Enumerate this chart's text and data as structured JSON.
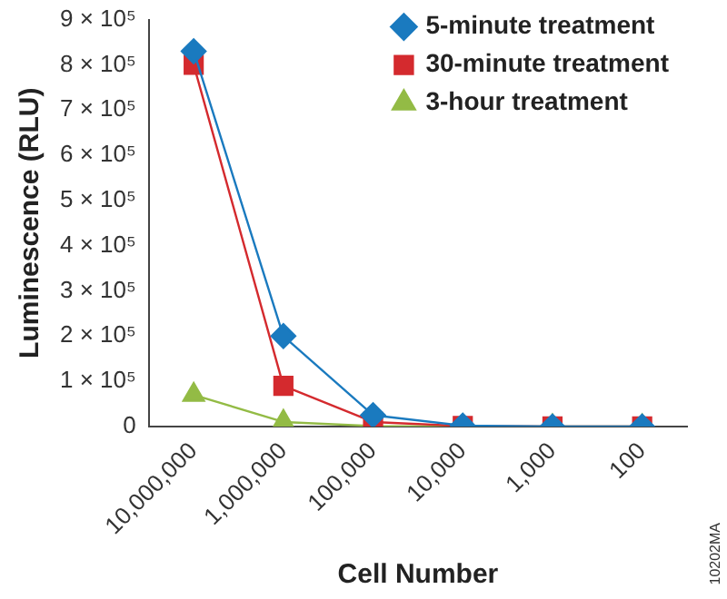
{
  "chart_data": {
    "type": "line",
    "xlabel": "Cell Number",
    "ylabel": "Luminescence (RLU)",
    "categories": [
      "10,000,000",
      "1,000,000",
      "100,000",
      "10,000",
      "1,000",
      "100"
    ],
    "series": [
      {
        "name": "5-minute treatment",
        "color": "#1a7abf",
        "marker": "diamond",
        "values": [
          830000,
          200000,
          25000,
          2000,
          0,
          0
        ]
      },
      {
        "name": "30-minute treatment",
        "color": "#d42a2e",
        "marker": "square",
        "values": [
          800000,
          90000,
          10000,
          1000,
          0,
          0
        ]
      },
      {
        "name": "3-hour treatment",
        "color": "#93bb45",
        "marker": "triangle",
        "values": [
          70000,
          10000,
          1000,
          0,
          0,
          0
        ]
      }
    ],
    "ylim": [
      0,
      900000
    ],
    "yticks": [
      0,
      {
        "value": 100000,
        "label": "1 × 10⁵"
      },
      {
        "value": 200000,
        "label": "2 × 10⁵"
      },
      {
        "value": 300000,
        "label": "3 × 10⁵"
      },
      {
        "value": 400000,
        "label": "4 × 10⁵"
      },
      {
        "value": 500000,
        "label": "5 × 10⁵"
      },
      {
        "value": 600000,
        "label": "6 × 10⁵"
      },
      {
        "value": 700000,
        "label": "7 × 10⁵"
      },
      {
        "value": 800000,
        "label": "8 × 10⁵"
      },
      {
        "value": 900000,
        "label": "9 × 10⁵"
      }
    ],
    "grid": false,
    "legend": "top right",
    "annotations": [
      "10202MA"
    ]
  }
}
